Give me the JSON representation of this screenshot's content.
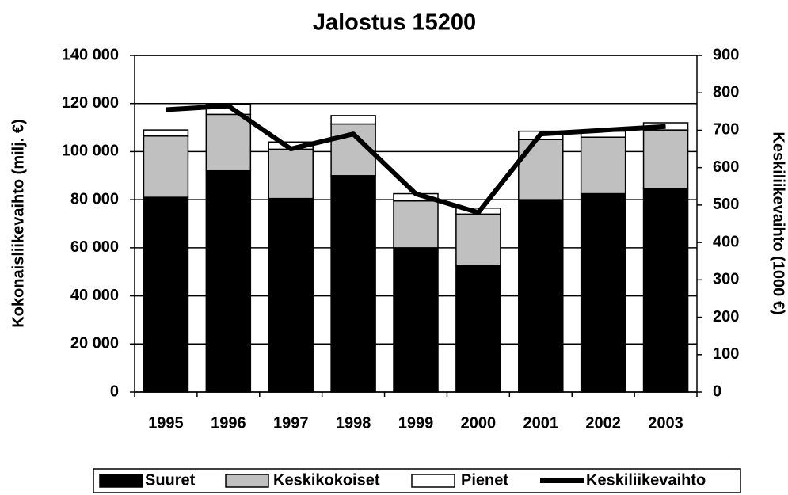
{
  "chart_data": {
    "type": "bar",
    "title": "Jalostus 15200",
    "y_label": "Kokonaisliikevaihto (milj. €)",
    "y2_label": "Keskiliikevaihto (1000 €)",
    "categories": [
      "1995",
      "1996",
      "1997",
      "1998",
      "1999",
      "2000",
      "2001",
      "2002",
      "2003"
    ],
    "stacked": true,
    "series": [
      {
        "name": "Suuret",
        "color": "#000000",
        "values": [
          81000,
          92000,
          80500,
          90000,
          60000,
          52500,
          80000,
          82500,
          84500
        ]
      },
      {
        "name": "Keskikokoiset",
        "color": "#c0c0c0",
        "values": [
          25500,
          23500,
          20500,
          21500,
          19500,
          21500,
          25000,
          23500,
          24500
        ]
      },
      {
        "name": "Pienet",
        "color": "#ffffff",
        "values": [
          2500,
          4000,
          3000,
          3500,
          3000,
          2500,
          3500,
          2500,
          3000
        ]
      },
      {
        "name": "Keskiliikevaihto",
        "color": "#000000",
        "type": "line",
        "axis": "y2",
        "values": [
          755,
          765,
          650,
          690,
          530,
          480,
          690,
          700,
          710
        ]
      }
    ],
    "ylim": [
      0,
      140000
    ],
    "yticks": [
      {
        "value": 0,
        "label": "0"
      },
      {
        "value": 20000,
        "label": "20 000"
      },
      {
        "value": 40000,
        "label": "40 000"
      },
      {
        "value": 60000,
        "label": "60 000"
      },
      {
        "value": 80000,
        "label": "80 000"
      },
      {
        "value": 100000,
        "label": "100 000"
      },
      {
        "value": 120000,
        "label": "120 000"
      },
      {
        "value": 140000,
        "label": "140 000"
      }
    ],
    "y2lim": [
      0,
      900
    ],
    "y2ticks": [
      0,
      100,
      200,
      300,
      400,
      500,
      600,
      700,
      800,
      900
    ],
    "grid": true,
    "legend": "bottom"
  }
}
